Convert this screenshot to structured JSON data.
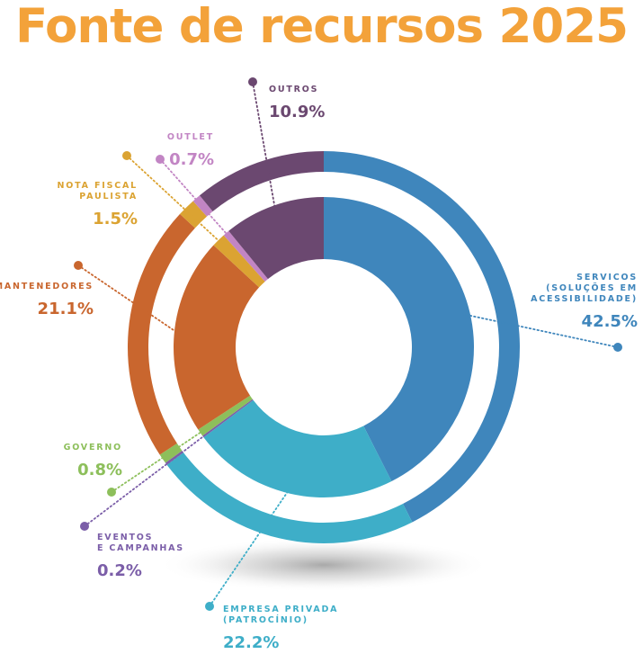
{
  "title": "Fonte de recursos 2025",
  "colors": {
    "title": "#f3a23a"
  },
  "chart_data": {
    "type": "pie",
    "title": "Fonte de recursos 2025",
    "unit": "%",
    "slices": [
      {
        "name_lines": [
          "SERVICOS",
          "(SOLUÇÕES EM",
          "ACESSIBILIDADE)"
        ],
        "value_label": "42.5%",
        "value": 42.5,
        "color": "#3f86bc"
      },
      {
        "name_lines": [
          "EMPRESA PRIVADA",
          "(PATROCÍNIO)"
        ],
        "value_label": "22.2%",
        "value": 22.2,
        "color": "#3eaec8"
      },
      {
        "name_lines": [
          "EVENTOS",
          "E CAMPANHAS"
        ],
        "value_label": "0.2%",
        "value": 0.2,
        "color": "#7b5ea8"
      },
      {
        "name_lines": [
          "GOVERNO"
        ],
        "value_label": "0.8%",
        "value": 0.8,
        "color": "#8dbf5b"
      },
      {
        "name_lines": [
          "MANTENEDORES"
        ],
        "value_label": "21.1%",
        "value": 21.1,
        "color": "#c9662e"
      },
      {
        "name_lines": [
          "NOTA FISCAL",
          "PAULISTA"
        ],
        "value_label": "1.5%",
        "value": 1.5,
        "color": "#dba332"
      },
      {
        "name_lines": [
          "OUTLET"
        ],
        "value_label": "0.7%",
        "value": 0.7,
        "color": "#c285c4"
      },
      {
        "name_lines": [
          "OUTROS"
        ],
        "value_label": "10.9%",
        "value": 10.9,
        "color": "#6b4870"
      }
    ]
  }
}
